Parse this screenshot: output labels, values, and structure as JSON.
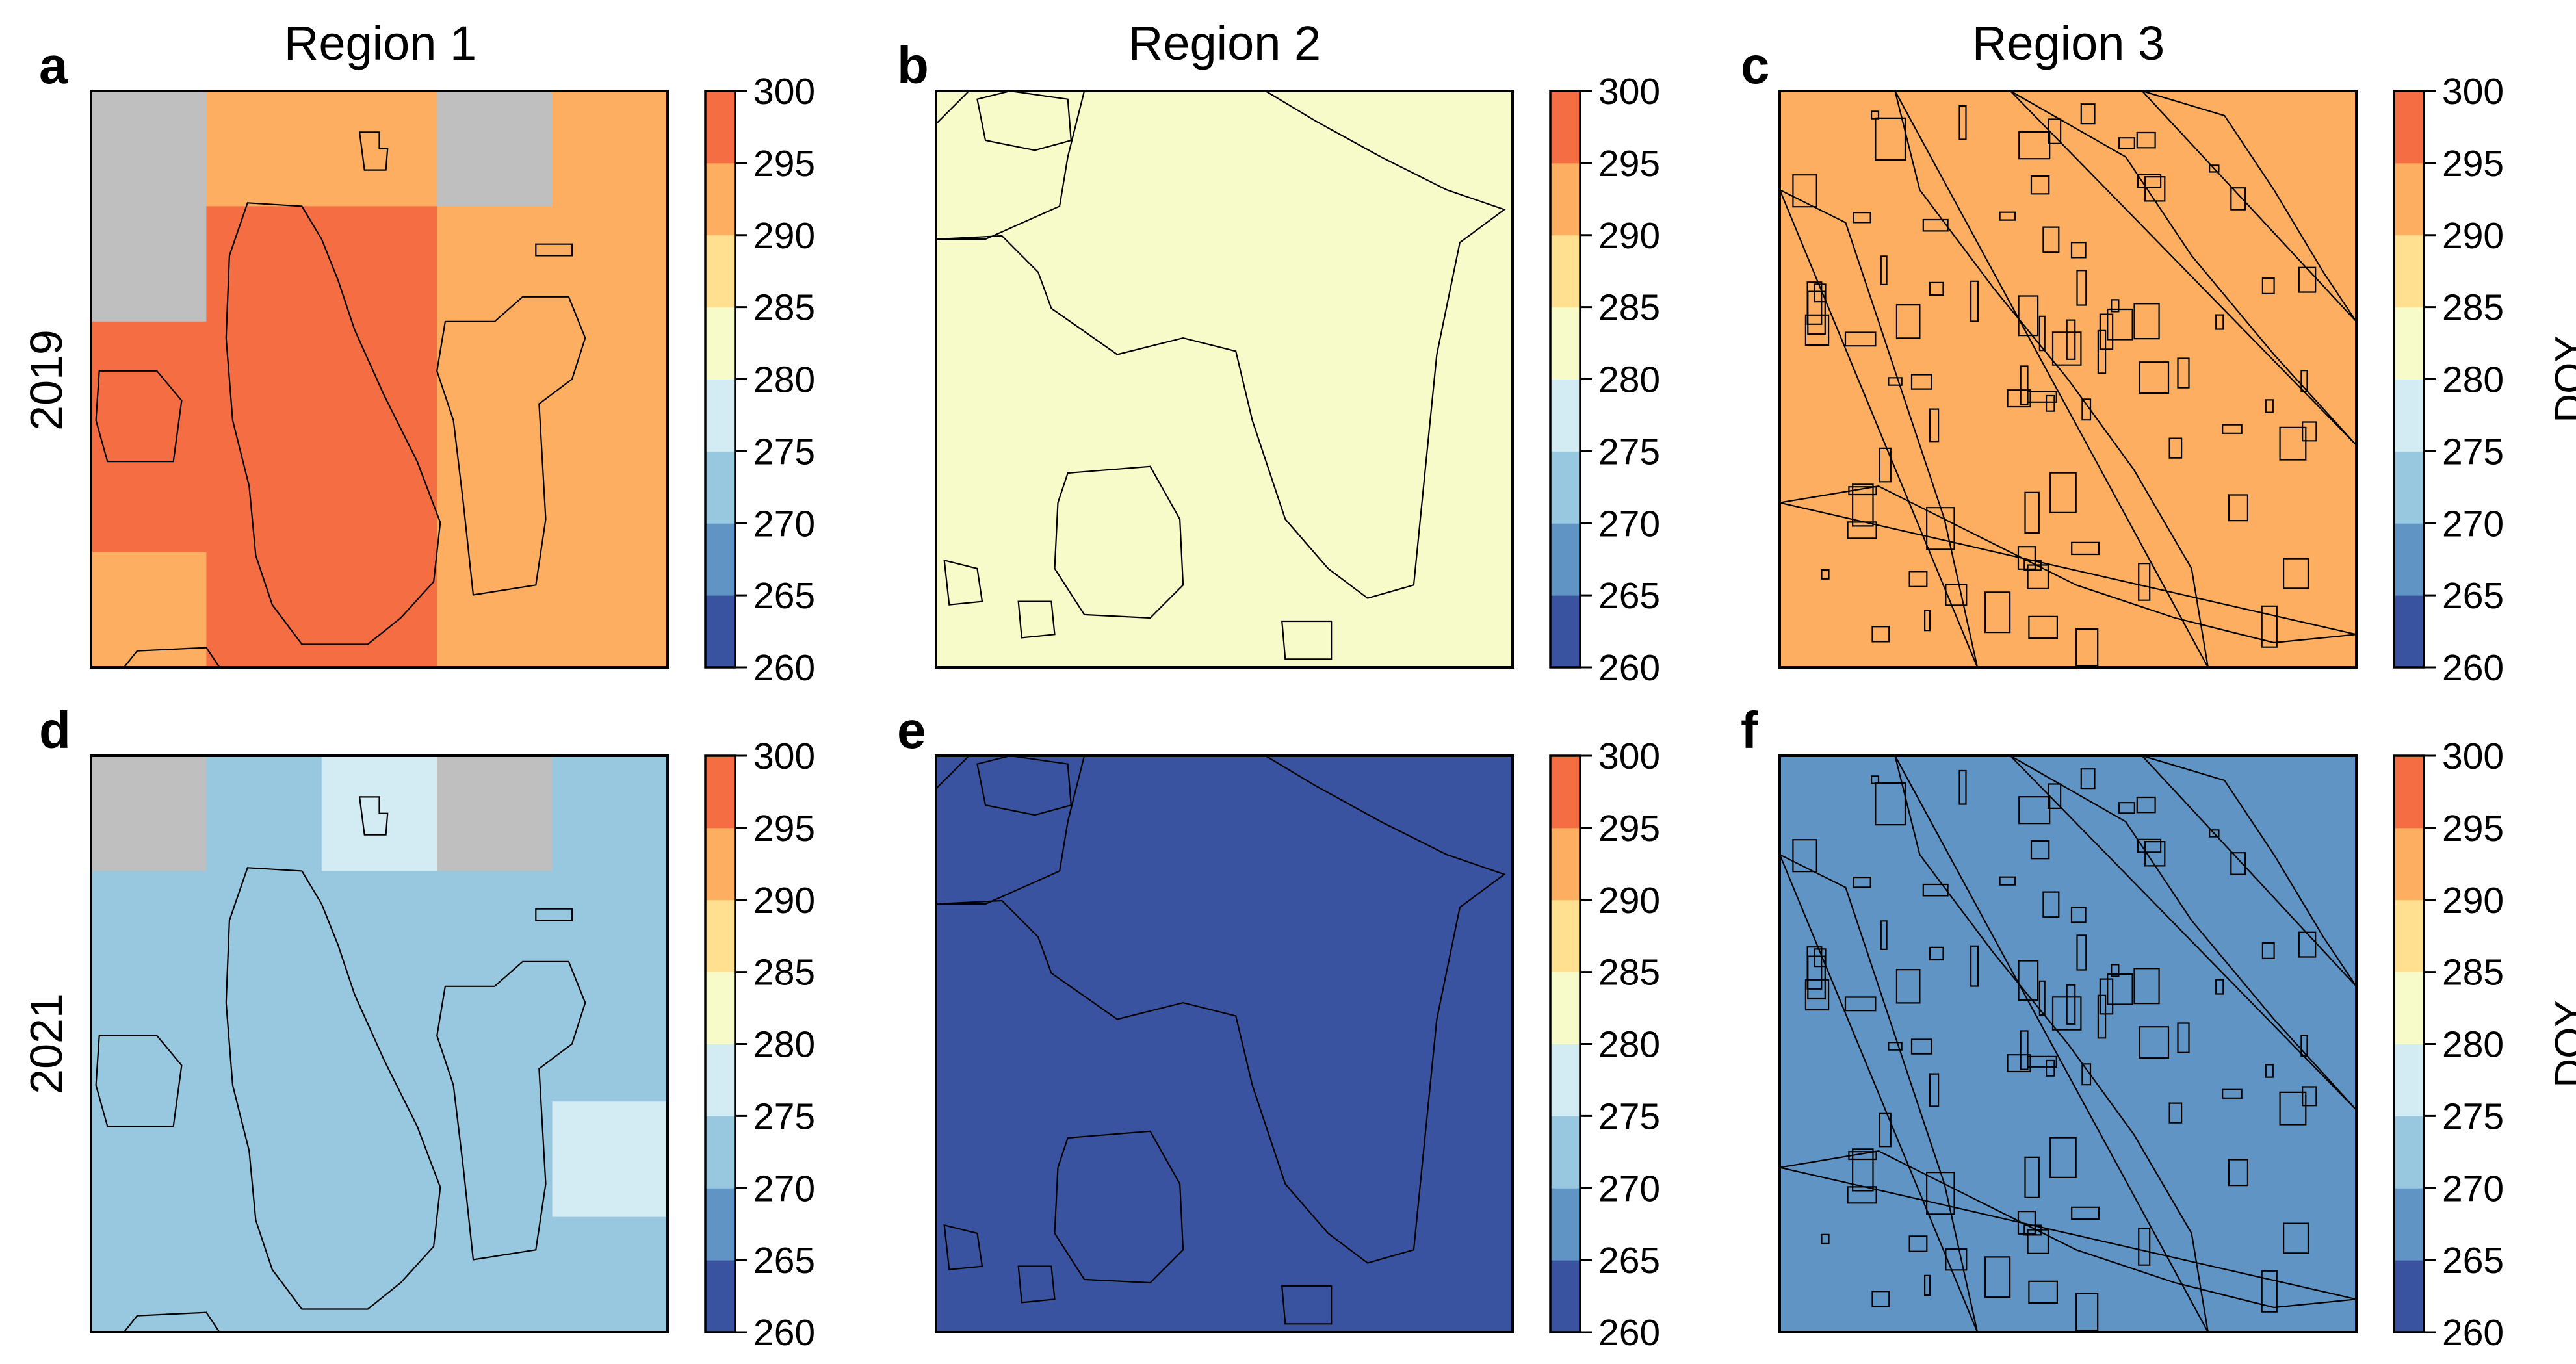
{
  "chart_data": {
    "type": "heatmap",
    "title": "",
    "column_titles": [
      "Region 1",
      "Region 2",
      "Region 3"
    ],
    "row_labels": [
      "2019",
      "2021"
    ],
    "colorbar": {
      "label": "DOY",
      "range": [
        260,
        300
      ],
      "ticks": [
        "260",
        "265",
        "270",
        "275",
        "280",
        "285",
        "290",
        "295",
        "300"
      ],
      "bins": [
        {
          "from": 260,
          "to": 265,
          "color": "#3a53a0"
        },
        {
          "from": 265,
          "to": 270,
          "color": "#6094c4"
        },
        {
          "from": 270,
          "to": 275,
          "color": "#98c8e0"
        },
        {
          "from": 275,
          "to": 280,
          "color": "#d3ebf3"
        },
        {
          "from": 280,
          "to": 285,
          "color": "#f7fbca"
        },
        {
          "from": 285,
          "to": 290,
          "color": "#fee090"
        },
        {
          "from": 290,
          "to": 295,
          "color": "#fdae61"
        },
        {
          "from": 295,
          "to": 300,
          "color": "#f46d43"
        }
      ],
      "nodata_color": "#bfbfbf"
    },
    "panels": [
      {
        "label": "a",
        "region": "Region 1",
        "year": "2019",
        "grid": [
          [
            "nodata",
            292,
            292,
            "nodata",
            292
          ],
          [
            "nodata",
            297,
            297,
            292,
            292
          ],
          [
            297,
            297,
            297,
            292,
            292
          ],
          [
            297,
            297,
            297,
            292,
            292
          ],
          [
            292,
            297,
            297,
            292,
            292
          ]
        ]
      },
      {
        "label": "b",
        "region": "Region 2",
        "year": "2019",
        "grid": [
          [
            282
          ]
        ]
      },
      {
        "label": "c",
        "region": "Region 3",
        "year": "2019",
        "grid": [
          [
            292
          ]
        ]
      },
      {
        "label": "d",
        "region": "Region 1",
        "year": "2021",
        "grid": [
          [
            "nodata",
            272,
            277,
            "nodata",
            272
          ],
          [
            272,
            272,
            272,
            272,
            272
          ],
          [
            272,
            272,
            272,
            272,
            272
          ],
          [
            272,
            272,
            272,
            272,
            277
          ],
          [
            272,
            272,
            272,
            272,
            272
          ]
        ]
      },
      {
        "label": "e",
        "region": "Region 2",
        "year": "2021",
        "grid": [
          [
            262
          ]
        ]
      },
      {
        "label": "f",
        "region": "Region 3",
        "year": "2021",
        "grid": [
          [
            267
          ]
        ]
      }
    ]
  }
}
